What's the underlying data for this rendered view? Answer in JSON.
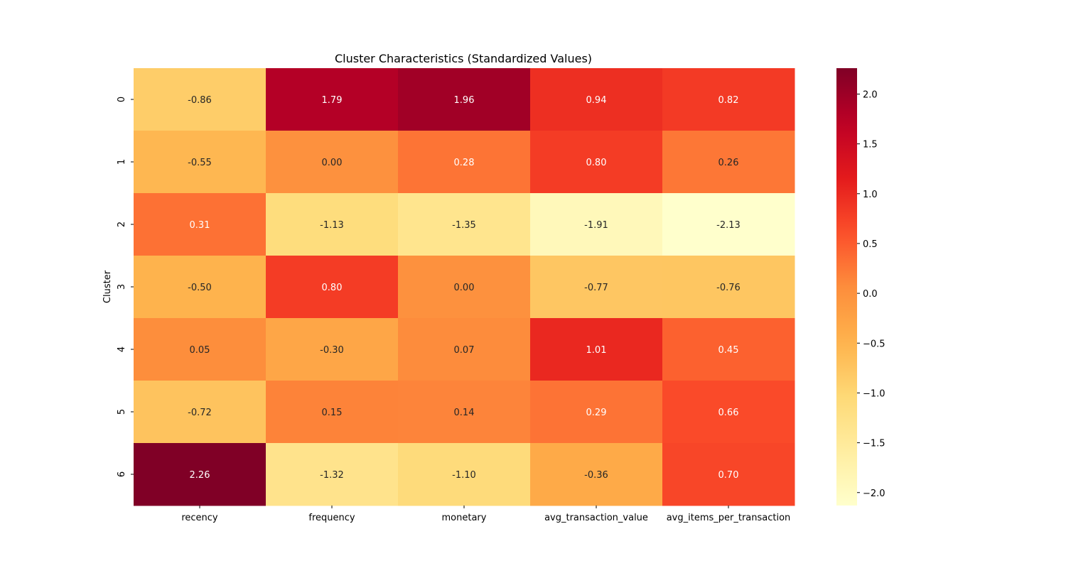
{
  "chart_data": {
    "type": "heatmap",
    "title": "Cluster Characteristics (Standardized Values)",
    "ylabel": "Cluster",
    "xlabel": "",
    "x_categories": [
      "recency",
      "frequency",
      "monetary",
      "avg_transaction_value",
      "avg_items_per_transaction"
    ],
    "y_categories": [
      "0",
      "1",
      "2",
      "3",
      "4",
      "5",
      "6"
    ],
    "values": [
      [
        -0.86,
        1.79,
        1.96,
        0.94,
        0.82
      ],
      [
        -0.55,
        0.0,
        0.28,
        0.8,
        0.26
      ],
      [
        0.31,
        -1.13,
        -1.35,
        -1.91,
        -2.13
      ],
      [
        -0.5,
        0.8,
        0.0,
        -0.77,
        -0.76
      ],
      [
        0.05,
        -0.3,
        0.07,
        1.01,
        0.45
      ],
      [
        -0.72,
        0.15,
        0.14,
        0.29,
        0.66
      ],
      [
        2.26,
        -1.32,
        -1.1,
        -0.36,
        0.7
      ]
    ],
    "value_format": "0.00",
    "colormap": "YlOrRd",
    "colorbar": {
      "vmin": -2.13,
      "vmax": 2.26,
      "ticks": [
        "2.0",
        "1.5",
        "1.0",
        "0.5",
        "0.0",
        "−0.5",
        "−1.0",
        "−1.5",
        "−2.0"
      ],
      "tick_values": [
        2.0,
        1.5,
        1.0,
        0.5,
        0.0,
        -0.5,
        -1.0,
        -1.5,
        -2.0
      ]
    }
  }
}
